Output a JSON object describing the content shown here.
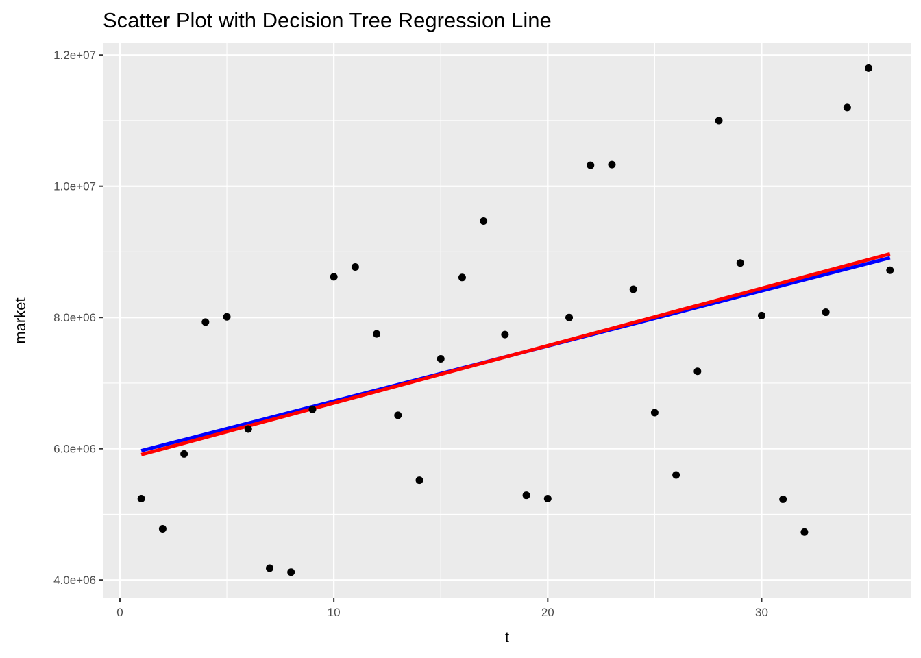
{
  "chart_data": {
    "type": "scatter",
    "title": "Scatter Plot with Decision Tree Regression Line",
    "xlabel": "t",
    "ylabel": "market",
    "xlim": [
      -0.8,
      37.0
    ],
    "ylim": [
      3720000,
      12180000
    ],
    "x_ticks": [
      0,
      10,
      20,
      30
    ],
    "x_tick_labels": [
      "0",
      "10",
      "20",
      "30"
    ],
    "y_ticks": [
      4000000,
      6000000,
      8000000,
      10000000,
      12000000
    ],
    "y_tick_labels": [
      "4.0e+06",
      "6.0e+06",
      "8.0e+06",
      "1.0e+07",
      "1.2e+07"
    ],
    "grid": true,
    "background_color": "#ebebeb",
    "grid_color": "#ffffff",
    "series": [
      {
        "kind": "points",
        "color": "#000000",
        "x": [
          1,
          2,
          3,
          4,
          5,
          6,
          7,
          8,
          9,
          10,
          11,
          12,
          13,
          14,
          15,
          16,
          17,
          18,
          19,
          20,
          21,
          22,
          23,
          24,
          25,
          26,
          27,
          28,
          29,
          30,
          31,
          32,
          33,
          34,
          35,
          36
        ],
        "y": [
          5240000,
          4780000,
          5920000,
          7930000,
          8010000,
          6300000,
          4180000,
          4120000,
          6600000,
          8620000,
          8770000,
          7750000,
          6510000,
          5520000,
          7370000,
          8610000,
          9470000,
          7740000,
          5290000,
          5240000,
          8000000,
          10320000,
          10330000,
          8430000,
          6550000,
          5600000,
          7180000,
          11000000,
          8830000,
          8030000,
          5230000,
          4730000,
          8080000,
          11200000,
          11800000,
          8720000
        ]
      },
      {
        "kind": "line",
        "color": "#0000ff",
        "x": [
          1,
          36
        ],
        "y": [
          5970000,
          8910000
        ]
      },
      {
        "kind": "line",
        "color": "#ff0000",
        "x": [
          1,
          36
        ],
        "y": [
          5910000,
          8970000
        ]
      }
    ]
  }
}
